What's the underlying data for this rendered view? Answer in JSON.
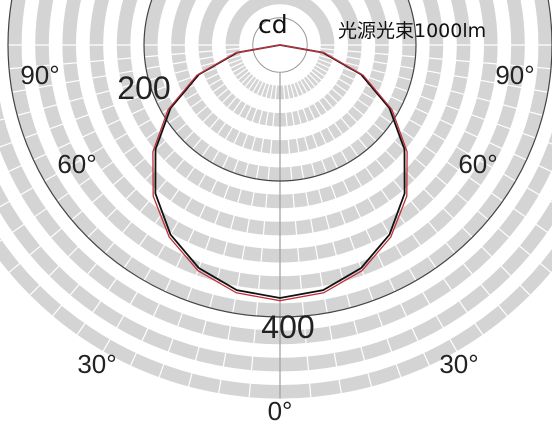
{
  "chart_data": {
    "type": "polar-intensity",
    "title": "cd",
    "subtitle": "光源光束1000lm",
    "radial_tick_labels": [
      "200",
      "400"
    ],
    "radial_ticks": [
      200,
      400
    ],
    "r_max": 520,
    "angle_labels": [
      "90°",
      "60°",
      "30°",
      "0°"
    ],
    "angles": [
      90,
      60,
      30,
      0
    ],
    "grid": true,
    "series": [
      {
        "color": "#111111",
        "angle_deg": [
          0,
          10,
          20,
          30,
          40,
          50,
          60,
          70,
          80,
          90
        ],
        "values": [
          372,
          366,
          349,
          322,
          285,
          239,
          186,
          127,
          64,
          0
        ]
      },
      {
        "color": "#c0303a",
        "angle_deg": [
          0,
          10,
          20,
          30,
          40,
          50,
          60,
          70,
          80,
          90
        ],
        "values": [
          376,
          370,
          353,
          326,
          290,
          244,
          190,
          130,
          66,
          0
        ]
      }
    ]
  }
}
